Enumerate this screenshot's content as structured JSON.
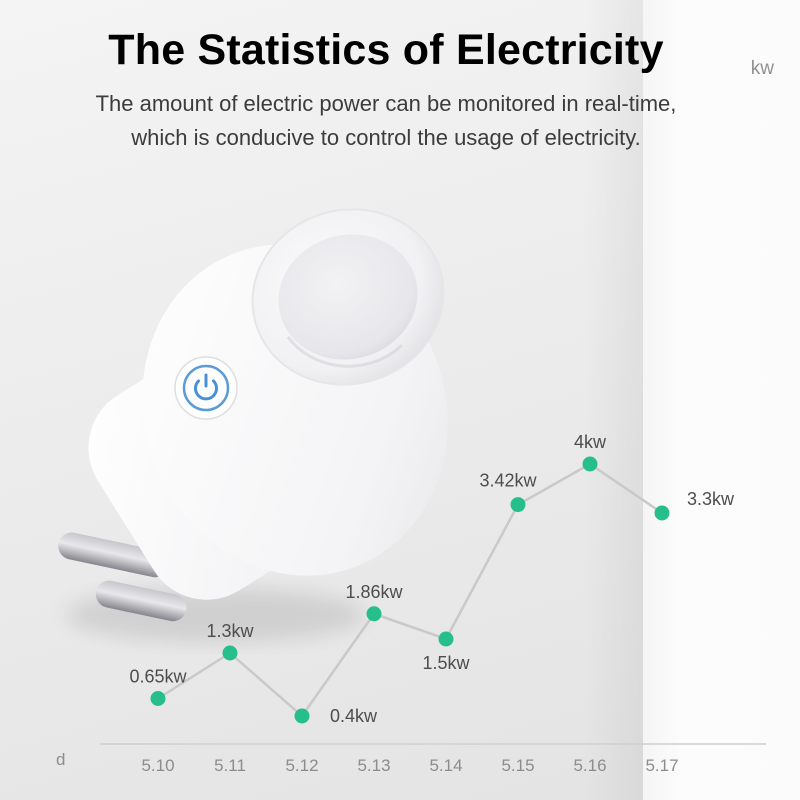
{
  "header": {
    "title": "The Statistics of Electricity",
    "subtitle_line1": "The amount of electric power can be monitored in real-time,",
    "subtitle_line2": "which is conducive to control the usage of electricity."
  },
  "plug": {
    "power_button_icon": "power-icon"
  },
  "chart_data": {
    "type": "line",
    "title": "The Statistics of Electricity",
    "xlabel": "d",
    "ylabel": "kw",
    "categories": [
      "5.10",
      "5.11",
      "5.12",
      "5.13",
      "5.14",
      "5.15",
      "5.16",
      "5.17"
    ],
    "values": [
      0.65,
      1.3,
      0.4,
      1.86,
      1.5,
      3.42,
      4,
      3.3
    ],
    "point_labels": [
      "0.65kw",
      "1.3kw",
      "0.4kw",
      "1.86kw",
      "1.5kw",
      "3.42kw",
      "4kw",
      "3.3kw"
    ],
    "label_positions": [
      "above",
      "above",
      "below-right",
      "above",
      "below",
      "above-left",
      "above",
      "right"
    ],
    "ylim": [
      0,
      4.6
    ],
    "grid": false,
    "legend": "none",
    "dot_color": "#26bf8c",
    "line_color": "#c9c9c9",
    "label_color": "#4d4d4d",
    "tick_color": "#8c8c8c",
    "axis_color": "#cfcfcf",
    "accent_blue": "#4a90d6"
  }
}
